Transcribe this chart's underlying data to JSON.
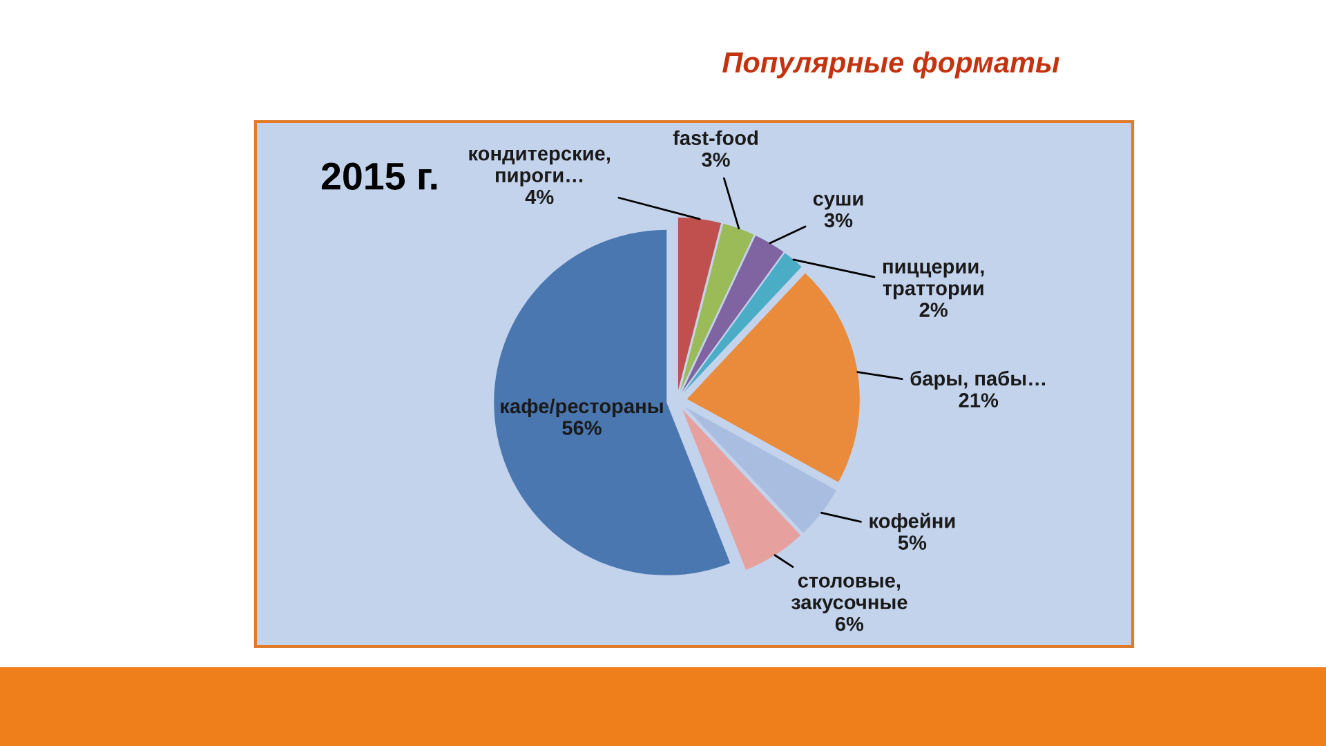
{
  "chart_data": {
    "type": "pie",
    "title": "Популярные форматы",
    "subtitle": "2015 г.",
    "categories": [
      "кондитерские, пироги…",
      "fast-food",
      "суши",
      "пиццерии, траттории",
      "бары, пабы…",
      "кофейни",
      "столовые, закусочные",
      "кафе/рестораны"
    ],
    "values": [
      4,
      3,
      3,
      2,
      21,
      5,
      6,
      56
    ],
    "value_labels": [
      "4%",
      "3%",
      "3%",
      "2%",
      "21%",
      "5%",
      "6%",
      "56%"
    ],
    "colors": [
      "#c0504d",
      "#9bbb59",
      "#8064a2",
      "#4bacc6",
      "#e98b3a",
      "#a9bde0",
      "#e6a09e",
      "#4a77b0"
    ]
  }
}
